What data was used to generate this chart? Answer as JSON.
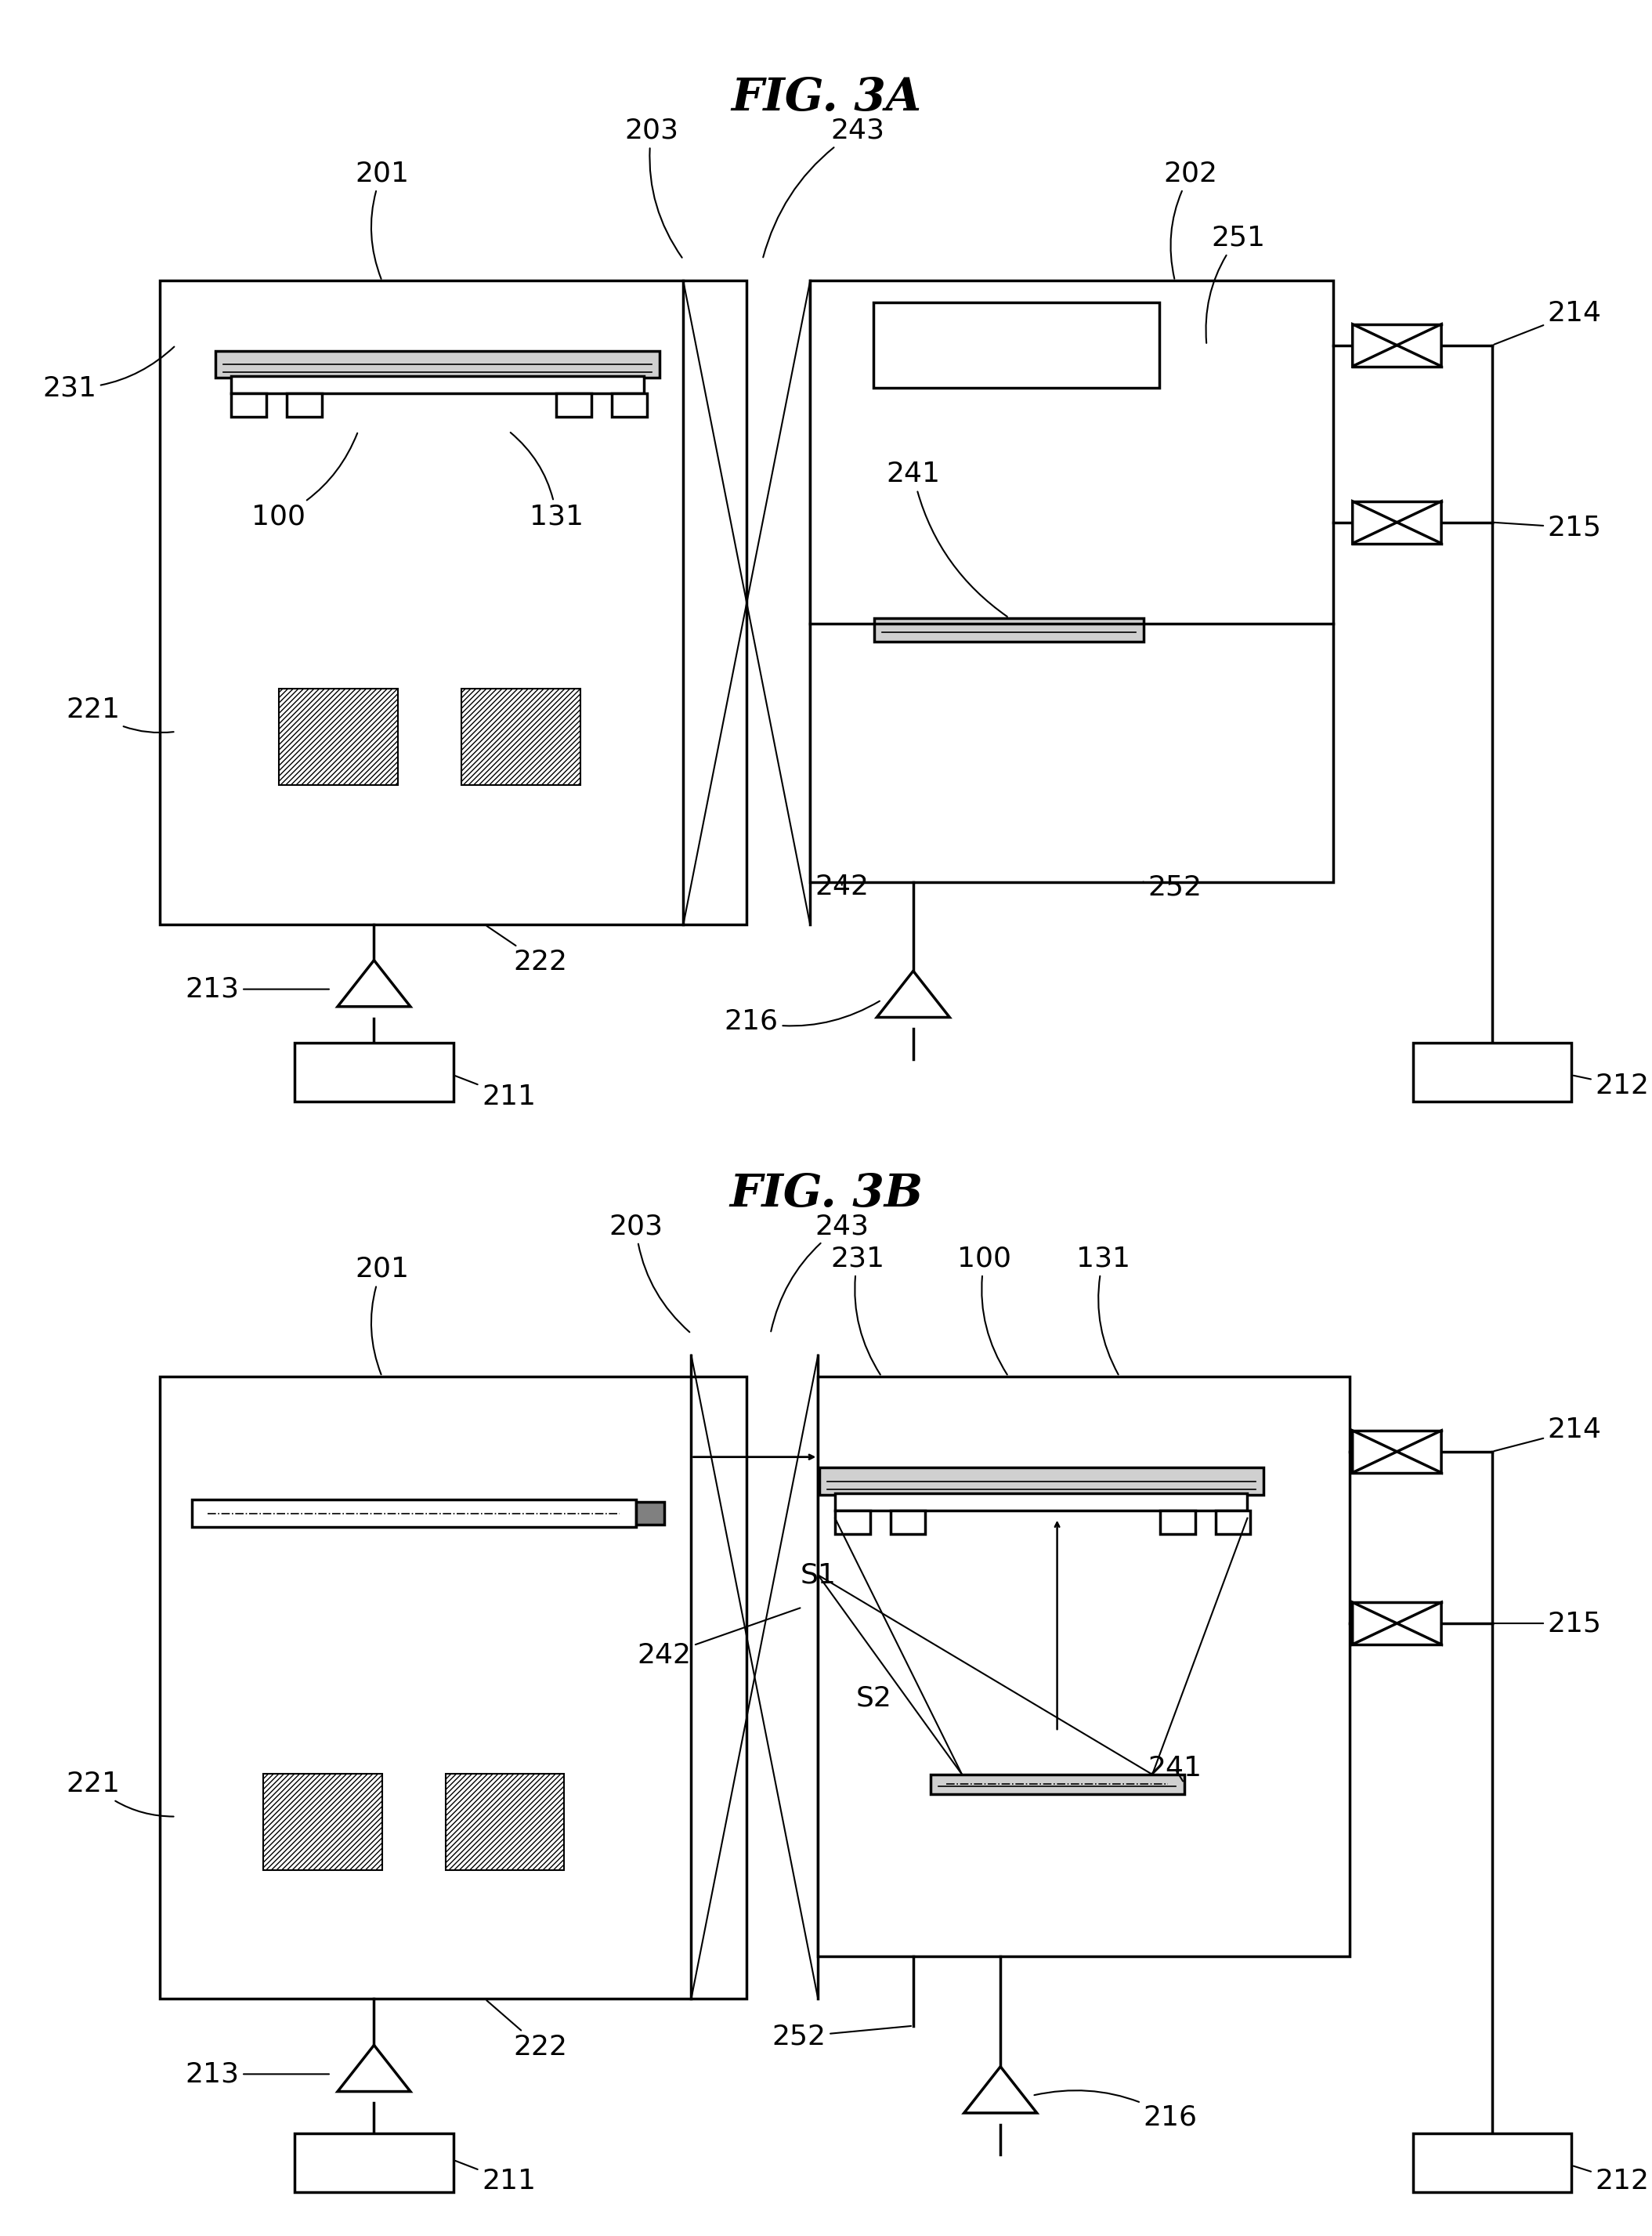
{
  "fig_title_3A": "FIG. 3A",
  "fig_title_3B": "FIG. 3B",
  "bg_color": "#ffffff",
  "line_color": "#000000",
  "lw": 2.5,
  "thin_lw": 1.5,
  "font_size_title": 42,
  "font_size_label": 26
}
